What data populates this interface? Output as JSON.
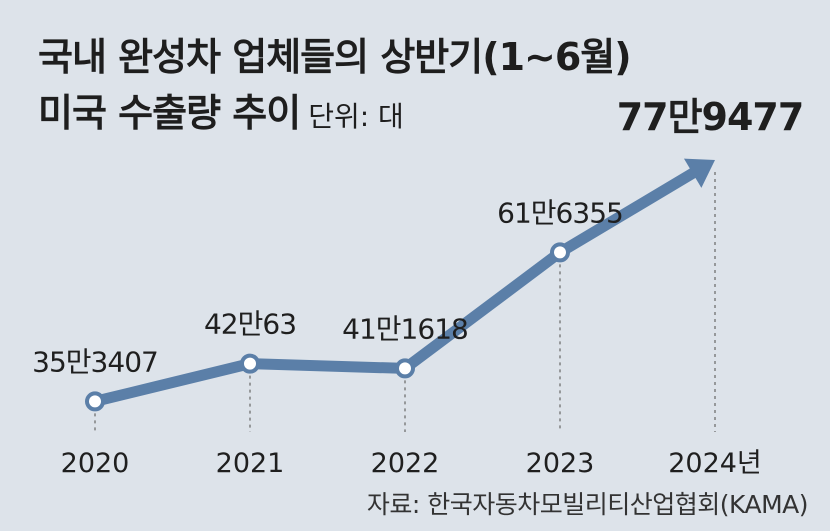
{
  "title_line1": "국내 완성차 업체들의 상반기(1∼6월)",
  "title_line2": "미국 수출량 추이",
  "unit": "단위: 대",
  "source": "자료: 한국자동차모빌리티산업협회(KAMA)",
  "colors": {
    "line": "#5b7fa8",
    "background": "#dde3ea"
  },
  "chart_data": {
    "type": "line",
    "x": [
      "2020",
      "2021",
      "2022",
      "2023",
      "2024년"
    ],
    "values": [
      353407,
      420063,
      411618,
      616355,
      779477
    ],
    "data_labels": [
      "35만3407",
      "42만63",
      "41만1618",
      "61만6355",
      "77만9477"
    ],
    "ylim": [
      250000,
      850000
    ],
    "grid": false,
    "last_point_arrow": true
  }
}
